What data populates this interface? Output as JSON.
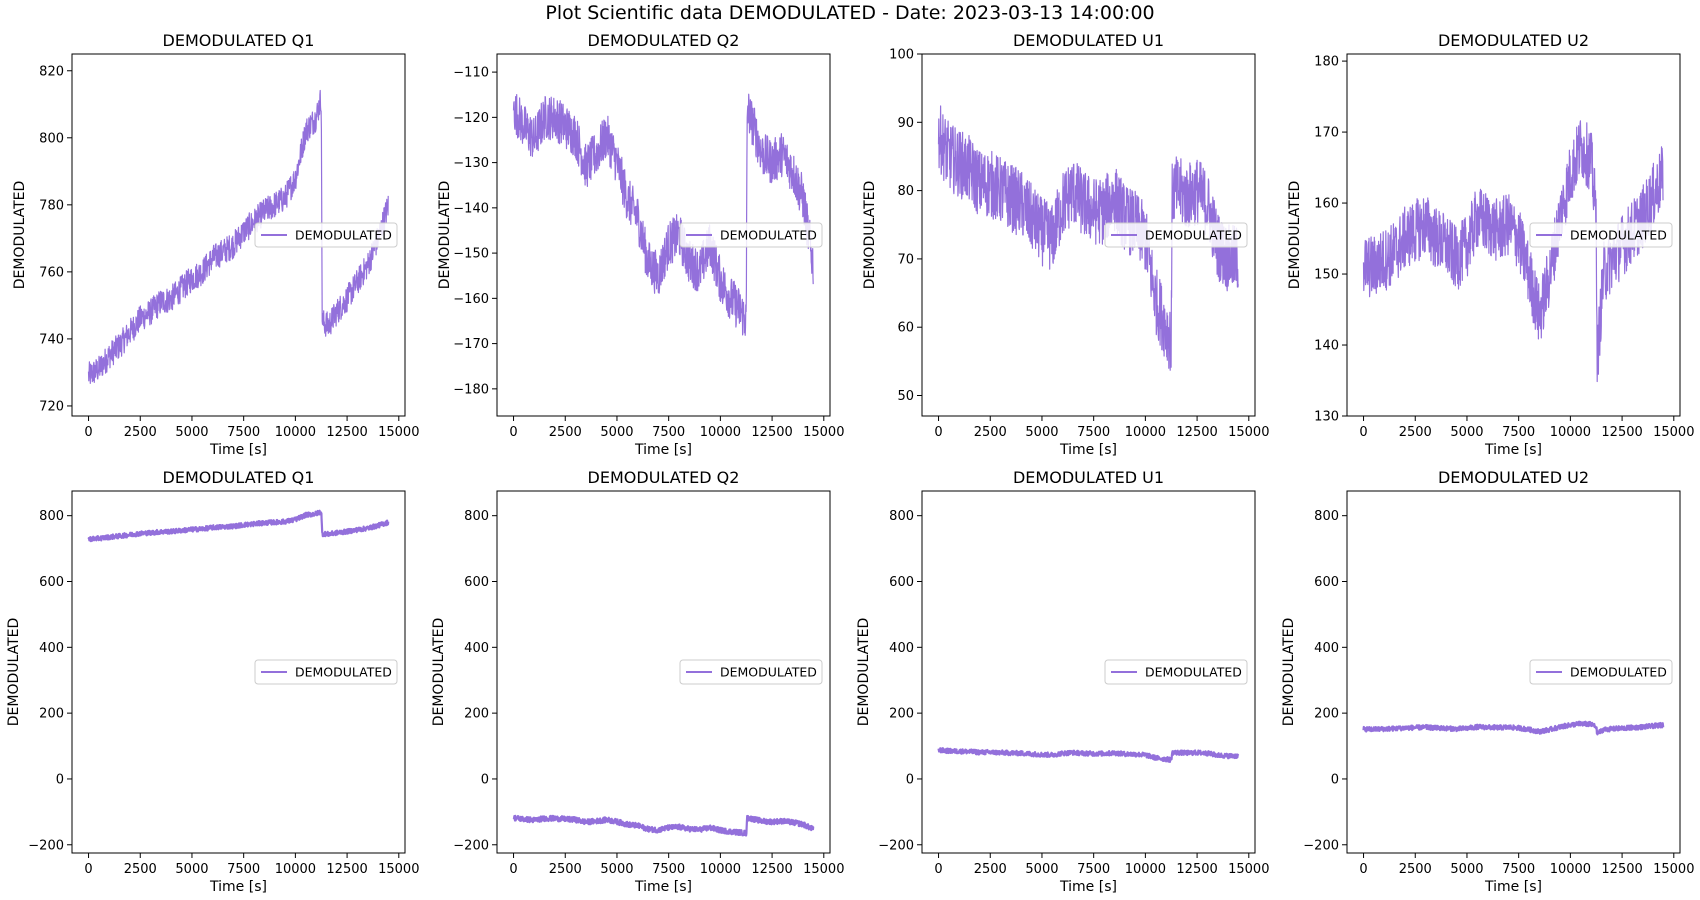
{
  "figure": {
    "title": "Plot Scientific data DEMODULATED - Date: 2023-03-13 14:00:00"
  },
  "style": {
    "line_color": "#9370DB",
    "axis_color": "#000000",
    "background": "#ffffff"
  },
  "chart_data": [
    {
      "type": "line",
      "title": "DEMODULATED Q1",
      "xlabel": "Time [s]",
      "ylabel": "DEMODULATED",
      "xlim": [
        -800,
        15300
      ],
      "ylim": [
        717,
        825
      ],
      "xticks": [
        0,
        2500,
        5000,
        7500,
        10000,
        12500,
        15000
      ],
      "yticks": [
        720,
        740,
        760,
        780,
        800,
        820
      ],
      "legend": {
        "label": "DEMODULATED",
        "loc": "center right"
      },
      "series": [
        {
          "name": "DEMODULATED",
          "x": [
            0,
            500,
            1000,
            1500,
            2000,
            2500,
            3000,
            3500,
            4000,
            4500,
            5000,
            5500,
            6000,
            6500,
            7000,
            7500,
            8000,
            8500,
            9000,
            9500,
            10000,
            10500,
            11000,
            11250,
            11300,
            11600,
            12000,
            12500,
            13000,
            13500,
            14000,
            14500
          ],
          "y": [
            729,
            731,
            735,
            738,
            742,
            746,
            748,
            751,
            752,
            755,
            758,
            760,
            764,
            766,
            768,
            772,
            775,
            778,
            780,
            782,
            788,
            802,
            806,
            812,
            745,
            744,
            748,
            752,
            757,
            762,
            770,
            780
          ],
          "noise": [
            8,
            8,
            8,
            8,
            8,
            8,
            8,
            8,
            8,
            8,
            8,
            8,
            8,
            8,
            8,
            8,
            8,
            8,
            8,
            8,
            8,
            8,
            8,
            8,
            8,
            8,
            8,
            8,
            8,
            8,
            8,
            8
          ]
        }
      ]
    },
    {
      "type": "line",
      "title": "DEMODULATED Q2",
      "xlabel": "Time [s]",
      "ylabel": "DEMODULATED",
      "xlim": [
        -800,
        15300
      ],
      "ylim": [
        -186,
        -106
      ],
      "xticks": [
        0,
        2500,
        5000,
        7500,
        10000,
        12500,
        15000
      ],
      "yticks": [
        -180,
        -170,
        -160,
        -150,
        -140,
        -130,
        -120,
        -110
      ],
      "legend": {
        "label": "DEMODULATED",
        "loc": "center right"
      },
      "series": [
        {
          "name": "DEMODULATED",
          "x": [
            0,
            500,
            1000,
            1500,
            2000,
            2500,
            3000,
            3500,
            4000,
            4500,
            5000,
            5500,
            6000,
            6500,
            7000,
            7500,
            8000,
            8500,
            9000,
            9500,
            10000,
            10500,
            11000,
            11250,
            11300,
            11600,
            12000,
            12500,
            13000,
            13500,
            14000,
            14500
          ],
          "y": [
            -118,
            -122,
            -125,
            -120,
            -120,
            -122,
            -124,
            -131,
            -128,
            -124,
            -130,
            -138,
            -142,
            -152,
            -155,
            -148,
            -146,
            -152,
            -154,
            -148,
            -156,
            -160,
            -163,
            -165,
            -118,
            -122,
            -128,
            -130,
            -128,
            -132,
            -138,
            -153
          ],
          "noise": [
            10,
            10,
            10,
            10,
            10,
            10,
            10,
            10,
            10,
            10,
            10,
            10,
            10,
            10,
            10,
            10,
            10,
            10,
            10,
            10,
            10,
            10,
            10,
            10,
            10,
            10,
            10,
            10,
            10,
            10,
            10,
            10
          ]
        }
      ]
    },
    {
      "type": "line",
      "title": "DEMODULATED U1",
      "xlabel": "Time [s]",
      "ylabel": "DEMODULATED",
      "xlim": [
        -800,
        15300
      ],
      "ylim": [
        47,
        100
      ],
      "xticks": [
        0,
        2500,
        5000,
        7500,
        10000,
        12500,
        15000
      ],
      "yticks": [
        50,
        60,
        70,
        80,
        90,
        100
      ],
      "legend": {
        "label": "DEMODULATED",
        "loc": "center right"
      },
      "series": [
        {
          "name": "DEMODULATED",
          "x": [
            0,
            500,
            1000,
            1500,
            2000,
            2500,
            3000,
            3500,
            4000,
            4500,
            5000,
            5500,
            6000,
            6500,
            7000,
            7500,
            8000,
            8500,
            9000,
            9500,
            10000,
            10500,
            11000,
            11250,
            11300,
            11600,
            12000,
            12500,
            13000,
            13500,
            14000,
            14500
          ],
          "y": [
            88,
            85,
            84,
            83,
            81,
            81,
            80,
            79,
            78,
            76,
            74,
            73,
            78,
            80,
            78,
            77,
            77,
            79,
            76,
            75,
            73,
            64,
            60,
            58,
            80,
            80,
            79,
            80,
            78,
            72,
            70,
            70
          ],
          "noise": [
            10,
            10,
            10,
            10,
            10,
            10,
            10,
            10,
            10,
            10,
            10,
            10,
            10,
            10,
            10,
            10,
            10,
            10,
            10,
            10,
            10,
            10,
            10,
            10,
            10,
            10,
            10,
            10,
            10,
            10,
            10,
            10
          ]
        }
      ]
    },
    {
      "type": "line",
      "title": "DEMODULATED U2",
      "xlabel": "Time [s]",
      "ylabel": "DEMODULATED",
      "xlim": [
        -800,
        15300
      ],
      "ylim": [
        130,
        181
      ],
      "xticks": [
        0,
        2500,
        5000,
        7500,
        10000,
        12500,
        15000
      ],
      "yticks": [
        130,
        140,
        150,
        160,
        170,
        180
      ],
      "legend": {
        "label": "DEMODULATED",
        "loc": "center right"
      },
      "series": [
        {
          "name": "DEMODULATED",
          "x": [
            0,
            500,
            1000,
            1500,
            2000,
            2500,
            3000,
            3500,
            4000,
            4500,
            5000,
            5500,
            6000,
            6500,
            7000,
            7500,
            8000,
            8500,
            9000,
            9500,
            10000,
            10500,
            11000,
            11250,
            11300,
            11600,
            12000,
            12500,
            13000,
            13500,
            14000,
            14500
          ],
          "y": [
            151,
            151,
            152,
            153,
            155,
            156,
            157,
            155,
            154,
            152,
            154,
            158,
            157,
            156,
            157,
            155,
            150,
            144,
            150,
            158,
            164,
            168,
            166,
            158,
            138,
            150,
            152,
            154,
            156,
            158,
            161,
            164
          ],
          "noise": [
            9,
            9,
            9,
            9,
            9,
            9,
            9,
            9,
            9,
            9,
            9,
            9,
            9,
            9,
            9,
            9,
            9,
            9,
            9,
            9,
            9,
            9,
            9,
            9,
            9,
            9,
            9,
            9,
            9,
            9,
            9,
            9
          ]
        }
      ]
    },
    {
      "type": "line",
      "title": "DEMODULATED Q1",
      "xlabel": "Time [s]",
      "ylabel": "DEMODULATED",
      "xlim": [
        -800,
        15300
      ],
      "ylim": [
        -225,
        875
      ],
      "xticks": [
        0,
        2500,
        5000,
        7500,
        10000,
        12500,
        15000
      ],
      "yticks": [
        -200,
        0,
        200,
        400,
        600,
        800
      ],
      "legend": {
        "label": "DEMODULATED",
        "loc": "center right"
      },
      "series": [
        {
          "name": "DEMODULATED",
          "x": [
            0,
            500,
            1000,
            1500,
            2000,
            2500,
            3000,
            3500,
            4000,
            4500,
            5000,
            5500,
            6000,
            6500,
            7000,
            7500,
            8000,
            8500,
            9000,
            9500,
            10000,
            10500,
            11000,
            11250,
            11300,
            11600,
            12000,
            12500,
            13000,
            13500,
            14000,
            14500
          ],
          "y": [
            729,
            731,
            735,
            738,
            742,
            746,
            748,
            751,
            752,
            755,
            758,
            760,
            764,
            766,
            768,
            772,
            775,
            778,
            780,
            782,
            788,
            802,
            806,
            812,
            745,
            744,
            748,
            752,
            757,
            762,
            770,
            780
          ],
          "noise": [
            14,
            14,
            14,
            14,
            14,
            14,
            14,
            14,
            14,
            14,
            14,
            14,
            14,
            14,
            14,
            14,
            14,
            14,
            14,
            14,
            14,
            14,
            14,
            14,
            14,
            14,
            14,
            14,
            14,
            14,
            14,
            14
          ]
        }
      ]
    },
    {
      "type": "line",
      "title": "DEMODULATED Q2",
      "xlabel": "Time [s]",
      "ylabel": "DEMODULATED",
      "xlim": [
        -800,
        15300
      ],
      "ylim": [
        -225,
        875
      ],
      "xticks": [
        0,
        2500,
        5000,
        7500,
        10000,
        12500,
        15000
      ],
      "yticks": [
        -200,
        0,
        200,
        400,
        600,
        800
      ],
      "legend": {
        "label": "DEMODULATED",
        "loc": "center right"
      },
      "series": [
        {
          "name": "DEMODULATED",
          "x": [
            0,
            500,
            1000,
            1500,
            2000,
            2500,
            3000,
            3500,
            4000,
            4500,
            5000,
            5500,
            6000,
            6500,
            7000,
            7500,
            8000,
            8500,
            9000,
            9500,
            10000,
            10500,
            11000,
            11250,
            11300,
            11600,
            12000,
            12500,
            13000,
            13500,
            14000,
            14500
          ],
          "y": [
            -118,
            -122,
            -125,
            -120,
            -120,
            -122,
            -124,
            -131,
            -128,
            -124,
            -130,
            -138,
            -142,
            -152,
            -155,
            -148,
            -146,
            -152,
            -154,
            -148,
            -156,
            -160,
            -163,
            -165,
            -118,
            -122,
            -128,
            -130,
            -128,
            -132,
            -138,
            -153
          ],
          "noise": [
            16,
            16,
            16,
            16,
            16,
            16,
            16,
            16,
            16,
            16,
            16,
            16,
            16,
            16,
            16,
            16,
            16,
            16,
            16,
            16,
            16,
            16,
            16,
            16,
            16,
            16,
            16,
            16,
            16,
            16,
            16,
            16
          ]
        }
      ]
    },
    {
      "type": "line",
      "title": "DEMODULATED U1",
      "xlabel": "Time [s]",
      "ylabel": "DEMODULATED",
      "xlim": [
        -800,
        15300
      ],
      "ylim": [
        -225,
        875
      ],
      "xticks": [
        0,
        2500,
        5000,
        7500,
        10000,
        12500,
        15000
      ],
      "yticks": [
        -200,
        0,
        200,
        400,
        600,
        800
      ],
      "legend": {
        "label": "DEMODULATED",
        "loc": "center right"
      },
      "series": [
        {
          "name": "DEMODULATED",
          "x": [
            0,
            500,
            1000,
            1500,
            2000,
            2500,
            3000,
            3500,
            4000,
            4500,
            5000,
            5500,
            6000,
            6500,
            7000,
            7500,
            8000,
            8500,
            9000,
            9500,
            10000,
            10500,
            11000,
            11250,
            11300,
            11600,
            12000,
            12500,
            13000,
            13500,
            14000,
            14500
          ],
          "y": [
            88,
            85,
            84,
            83,
            81,
            81,
            80,
            79,
            78,
            76,
            74,
            73,
            78,
            80,
            78,
            77,
            77,
            79,
            76,
            75,
            73,
            64,
            60,
            58,
            80,
            80,
            79,
            80,
            78,
            72,
            70,
            70
          ],
          "noise": [
            14,
            14,
            14,
            14,
            14,
            14,
            14,
            14,
            14,
            14,
            14,
            14,
            14,
            14,
            14,
            14,
            14,
            14,
            14,
            14,
            14,
            14,
            14,
            14,
            14,
            14,
            14,
            14,
            14,
            14,
            14,
            14
          ]
        }
      ]
    },
    {
      "type": "line",
      "title": "DEMODULATED U2",
      "xlabel": "Time [s]",
      "ylabel": "DEMODULATED",
      "xlim": [
        -800,
        15300
      ],
      "ylim": [
        -225,
        875
      ],
      "xticks": [
        0,
        2500,
        5000,
        7500,
        10000,
        12500,
        15000
      ],
      "yticks": [
        -200,
        0,
        200,
        400,
        600,
        800
      ],
      "legend": {
        "label": "DEMODULATED",
        "loc": "center right"
      },
      "series": [
        {
          "name": "DEMODULATED",
          "x": [
            0,
            500,
            1000,
            1500,
            2000,
            2500,
            3000,
            3500,
            4000,
            4500,
            5000,
            5500,
            6000,
            6500,
            7000,
            7500,
            8000,
            8500,
            9000,
            9500,
            10000,
            10500,
            11000,
            11250,
            11300,
            11600,
            12000,
            12500,
            13000,
            13500,
            14000,
            14500
          ],
          "y": [
            151,
            151,
            152,
            153,
            155,
            156,
            157,
            155,
            154,
            152,
            154,
            158,
            157,
            156,
            157,
            155,
            150,
            144,
            150,
            158,
            164,
            168,
            166,
            158,
            138,
            150,
            152,
            154,
            156,
            158,
            161,
            164
          ],
          "noise": [
            14,
            14,
            14,
            14,
            14,
            14,
            14,
            14,
            14,
            14,
            14,
            14,
            14,
            14,
            14,
            14,
            14,
            14,
            14,
            14,
            14,
            14,
            14,
            14,
            14,
            14,
            14,
            14,
            14,
            14,
            14,
            14
          ]
        }
      ]
    }
  ]
}
